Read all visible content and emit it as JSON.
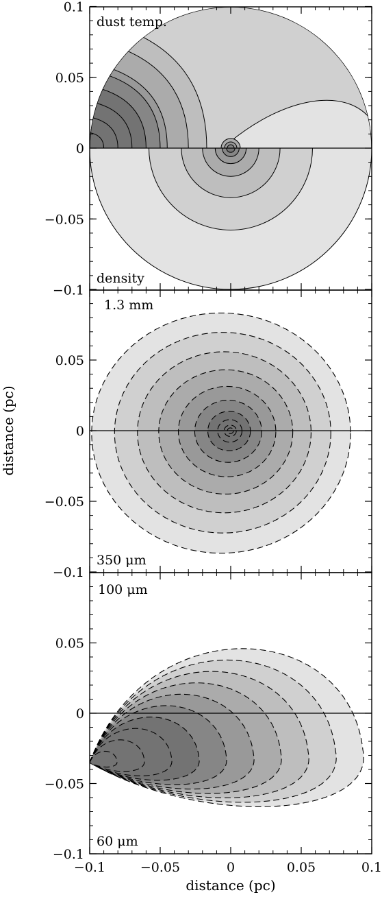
{
  "chart_data": {
    "type": "contour",
    "xlabel": "distance (pc)",
    "ylabel": "distance (pc)",
    "xlim": [
      -0.1,
      0.1
    ],
    "panel_ylim": [
      -0.1,
      0.1
    ],
    "x_ticks": [
      -0.1,
      -0.05,
      0,
      0.05,
      0.1
    ],
    "x_tick_labels": [
      "−0.1",
      "−0.05",
      "0",
      "0.05",
      "0.1"
    ],
    "y_ticks": [
      -0.1,
      -0.05,
      0,
      0.05,
      0.1
    ],
    "y_tick_labels": [
      "−0.1",
      "−0.05",
      "0",
      "0.05",
      "0.1"
    ],
    "grid": false,
    "legend": "none",
    "fill_shades": [
      "#e3e3e3",
      "#d0d0d0",
      "#bebebe",
      "#ababab",
      "#999999",
      "#868686",
      "#737373"
    ],
    "panels": [
      {
        "top_label": "dust temp.",
        "bottom_label": "density",
        "top_half": {
          "quantity": "dust temp.",
          "line_style": "solid",
          "description_levels": 7,
          "contours": [
            {
              "type": "vertical_bands",
              "x_edges": [
                -0.1,
                -0.09,
                -0.08,
                -0.07,
                -0.06,
                -0.05,
                -0.045,
                -0.03,
                -0.017
              ]
            }
          ]
        },
        "bottom_half": {
          "quantity": "density",
          "line_style": "solid",
          "center": [
            0,
            0
          ],
          "radii": [
            0.1,
            0.058,
            0.035,
            0.02,
            0.011,
            0.006,
            0.003
          ]
        }
      },
      {
        "top_label": "1.3 mm",
        "bottom_label": "350 μm",
        "line_style": "dashed",
        "center": [
          0,
          0
        ],
        "radii": [
          0.085,
          0.071,
          0.057,
          0.044,
          0.032,
          0.022,
          0.014,
          0.008,
          0.004,
          0.002
        ]
      },
      {
        "top_label": "100 μm",
        "bottom_label": "60 μm",
        "line_style": "dashed",
        "source": [
          -0.1,
          -0.035
        ],
        "levels": 10
      }
    ]
  }
}
